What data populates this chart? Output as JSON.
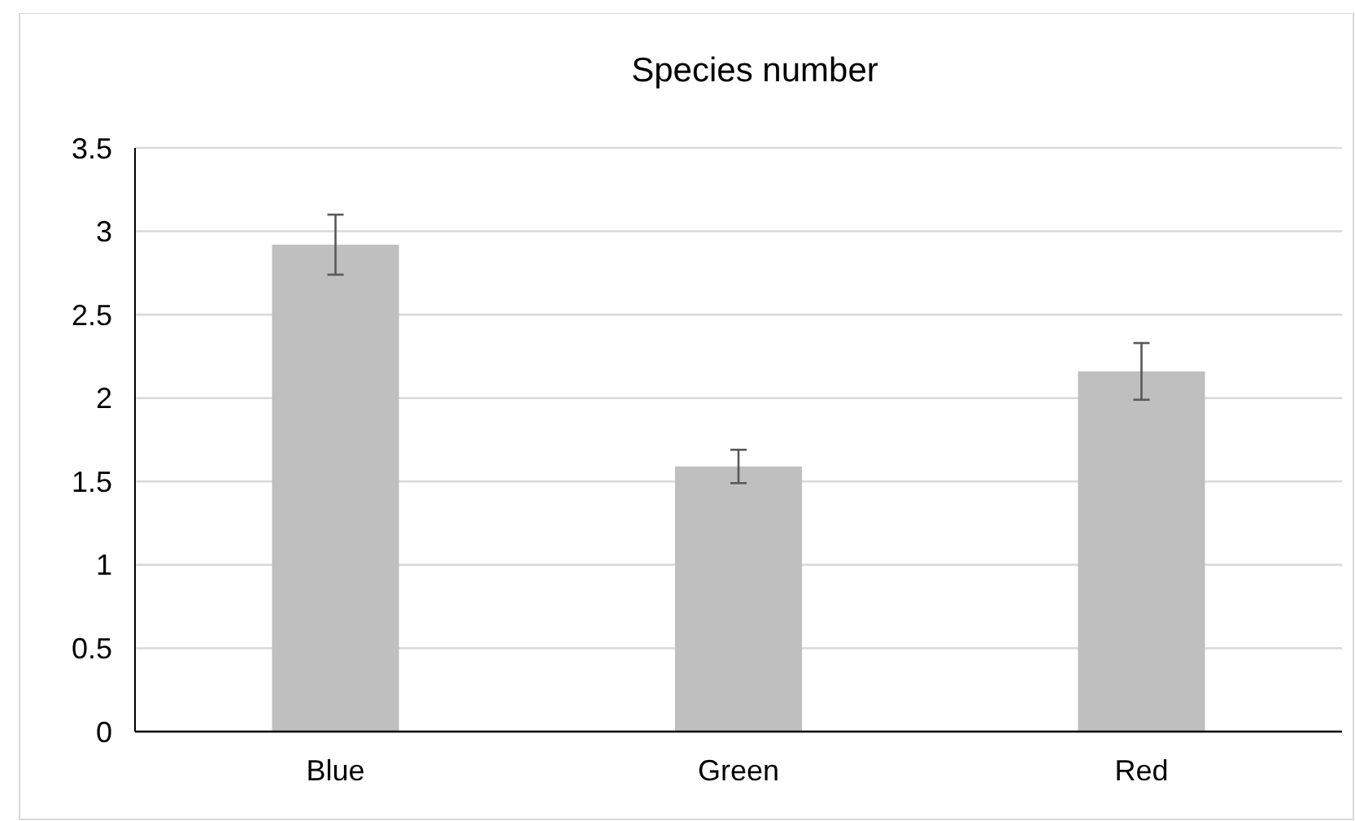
{
  "chart_data": {
    "type": "bar",
    "title": "Species number",
    "categories": [
      "Blue",
      "Green",
      "Red"
    ],
    "values": [
      2.92,
      1.59,
      2.16
    ],
    "errors": [
      0.18,
      0.1,
      0.17
    ],
    "color": "#bfbfbf",
    "ylim": [
      0,
      3.5
    ],
    "yticks": [
      0,
      0.5,
      1,
      1.5,
      2,
      2.5,
      3,
      3.5
    ],
    "grid": "y"
  }
}
